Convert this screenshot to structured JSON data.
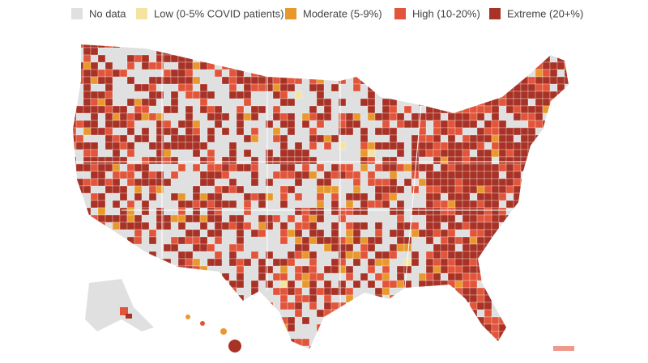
{
  "legend": {
    "items": [
      {
        "label": "No data",
        "color": "#e0e0e0"
      },
      {
        "label": "Low (0-5% COVID patients)",
        "color": "#f6e3a1"
      },
      {
        "label": "Moderate (5-9%)",
        "color": "#e8992e"
      },
      {
        "label": "High (10-20%)",
        "color": "#e2553a"
      },
      {
        "label": "Extreme (20+%)",
        "color": "#a83226"
      }
    ]
  }
}
